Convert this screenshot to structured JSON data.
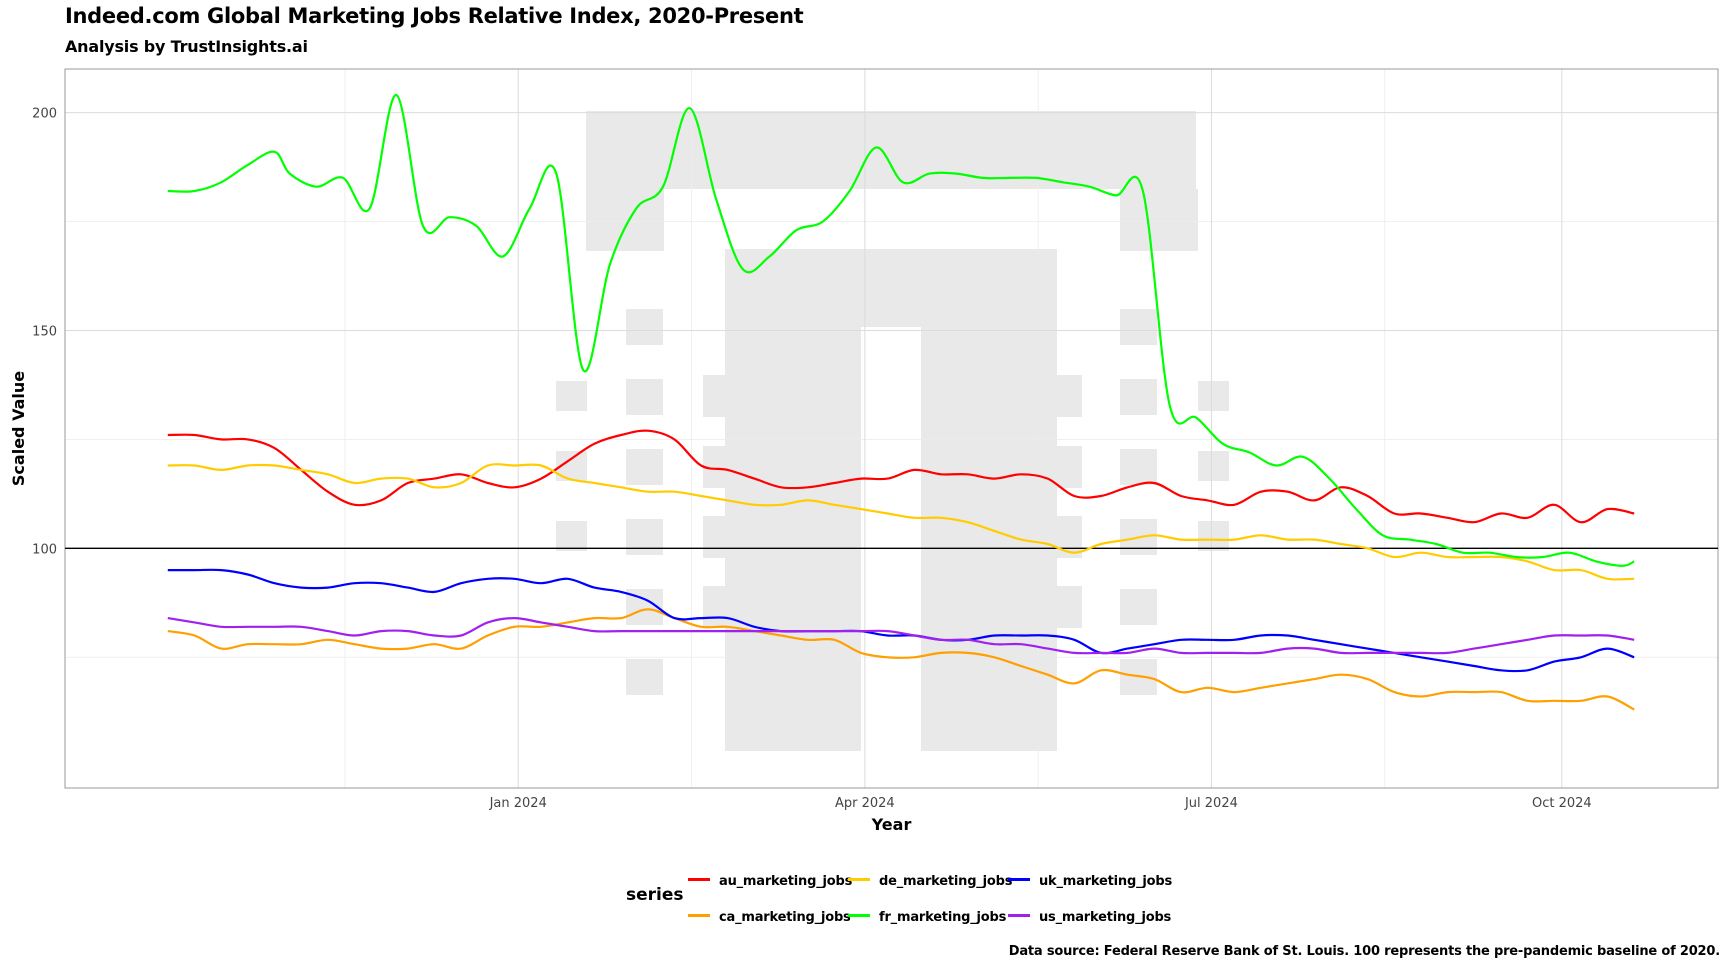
{
  "header": {
    "title": "Indeed.com Global Marketing Jobs Relative Index, 2020-Present",
    "subtitle": "Analysis by TrustInsights.ai"
  },
  "caption": "Data source: Federal Reserve Bank of St. Louis. 100 represents the pre-pandemic baseline of 2020.",
  "legend": {
    "title": "series"
  },
  "chart_data": {
    "type": "line",
    "title": "Indeed.com Global Marketing Jobs Relative Index, 2020-Present",
    "subtitle": "Analysis by TrustInsights.ai",
    "xlabel": "Year",
    "ylabel": "Scaled Value",
    "xlim": [
      "2023-09-04",
      "2024-11-11"
    ],
    "ylim": [
      45,
      210
    ],
    "x_ticks": [
      "2024-01-01",
      "2024-04-01",
      "2024-07-01",
      "2024-10-01"
    ],
    "x_tick_labels": [
      "Jan 2024",
      "Apr 2024",
      "Jul 2024",
      "Oct 2024"
    ],
    "y_ticks": [
      100,
      150,
      200
    ],
    "reference_line": 100,
    "grid": true,
    "legend_position": "bottom",
    "series": [
      {
        "name": "au_marketing_jobs",
        "color": "#ff0000",
        "x": [
          "2023-10-01",
          "2023-10-08",
          "2023-10-15",
          "2023-10-22",
          "2023-10-29",
          "2023-11-05",
          "2023-11-12",
          "2023-11-19",
          "2023-11-26",
          "2023-12-03",
          "2023-12-10",
          "2023-12-17",
          "2023-12-24",
          "2023-12-31",
          "2024-01-07",
          "2024-01-14",
          "2024-01-21",
          "2024-01-28",
          "2024-02-04",
          "2024-02-11",
          "2024-02-18",
          "2024-02-25",
          "2024-03-03",
          "2024-03-10",
          "2024-03-17",
          "2024-03-24",
          "2024-03-31",
          "2024-04-07",
          "2024-04-14",
          "2024-04-21",
          "2024-04-28",
          "2024-05-05",
          "2024-05-12",
          "2024-05-19",
          "2024-05-26",
          "2024-06-02",
          "2024-06-09",
          "2024-06-16",
          "2024-06-23",
          "2024-06-30",
          "2024-07-07",
          "2024-07-14",
          "2024-07-21",
          "2024-07-28",
          "2024-08-04",
          "2024-08-11",
          "2024-08-18",
          "2024-08-25",
          "2024-09-01",
          "2024-09-08",
          "2024-09-15",
          "2024-09-22",
          "2024-09-29",
          "2024-10-06",
          "2024-10-13",
          "2024-10-20"
        ],
        "values": [
          126,
          126,
          125,
          125,
          123,
          118,
          113,
          110,
          111,
          115,
          116,
          117,
          115,
          114,
          116,
          120,
          124,
          126,
          127,
          125,
          119,
          118,
          116,
          114,
          114,
          115,
          116,
          116,
          118,
          117,
          117,
          116,
          117,
          116,
          112,
          112,
          114,
          115,
          112,
          111,
          110,
          113,
          113,
          111,
          114,
          112,
          108,
          108,
          107,
          106,
          108,
          107,
          110,
          106,
          109,
          108
        ]
      },
      {
        "name": "ca_marketing_jobs",
        "color": "#ff9f00",
        "x": [
          "2023-10-01",
          "2023-10-08",
          "2023-10-15",
          "2023-10-22",
          "2023-10-29",
          "2023-11-05",
          "2023-11-12",
          "2023-11-19",
          "2023-11-26",
          "2023-12-03",
          "2023-12-10",
          "2023-12-17",
          "2023-12-24",
          "2023-12-31",
          "2024-01-07",
          "2024-01-14",
          "2024-01-21",
          "2024-01-28",
          "2024-02-04",
          "2024-02-11",
          "2024-02-18",
          "2024-02-25",
          "2024-03-03",
          "2024-03-10",
          "2024-03-17",
          "2024-03-24",
          "2024-03-31",
          "2024-04-07",
          "2024-04-14",
          "2024-04-21",
          "2024-04-28",
          "2024-05-05",
          "2024-05-12",
          "2024-05-19",
          "2024-05-26",
          "2024-06-02",
          "2024-06-09",
          "2024-06-16",
          "2024-06-23",
          "2024-06-30",
          "2024-07-07",
          "2024-07-14",
          "2024-07-21",
          "2024-07-28",
          "2024-08-04",
          "2024-08-11",
          "2024-08-18",
          "2024-08-25",
          "2024-09-01",
          "2024-09-08",
          "2024-09-15",
          "2024-09-22",
          "2024-09-29",
          "2024-10-06",
          "2024-10-13",
          "2024-10-20"
        ],
        "values": [
          81,
          80,
          77,
          78,
          78,
          78,
          79,
          78,
          77,
          77,
          78,
          77,
          80,
          82,
          82,
          83,
          84,
          84,
          86,
          84,
          82,
          82,
          81,
          80,
          79,
          79,
          76,
          75,
          75,
          76,
          76,
          75,
          73,
          71,
          69,
          72,
          71,
          70,
          67,
          68,
          67,
          68,
          69,
          70,
          71,
          70,
          67,
          66,
          67,
          67,
          67,
          65,
          65,
          65,
          66,
          63
        ]
      },
      {
        "name": "de_marketing_jobs",
        "color": "#ffcc00",
        "x": [
          "2023-10-01",
          "2023-10-08",
          "2023-10-15",
          "2023-10-22",
          "2023-10-29",
          "2023-11-05",
          "2023-11-12",
          "2023-11-19",
          "2023-11-26",
          "2023-12-03",
          "2023-12-10",
          "2023-12-17",
          "2023-12-24",
          "2023-12-31",
          "2024-01-07",
          "2024-01-14",
          "2024-01-21",
          "2024-01-28",
          "2024-02-04",
          "2024-02-11",
          "2024-02-18",
          "2024-02-25",
          "2024-03-03",
          "2024-03-10",
          "2024-03-17",
          "2024-03-24",
          "2024-03-31",
          "2024-04-07",
          "2024-04-14",
          "2024-04-21",
          "2024-04-28",
          "2024-05-05",
          "2024-05-12",
          "2024-05-19",
          "2024-05-26",
          "2024-06-02",
          "2024-06-09",
          "2024-06-16",
          "2024-06-23",
          "2024-06-30",
          "2024-07-07",
          "2024-07-14",
          "2024-07-21",
          "2024-07-28",
          "2024-08-04",
          "2024-08-11",
          "2024-08-18",
          "2024-08-25",
          "2024-09-01",
          "2024-09-08",
          "2024-09-15",
          "2024-09-22",
          "2024-09-29",
          "2024-10-06",
          "2024-10-13",
          "2024-10-20"
        ],
        "values": [
          119,
          119,
          118,
          119,
          119,
          118,
          117,
          115,
          116,
          116,
          114,
          115,
          119,
          119,
          119,
          116,
          115,
          114,
          113,
          113,
          112,
          111,
          110,
          110,
          111,
          110,
          109,
          108,
          107,
          107,
          106,
          104,
          102,
          101,
          99,
          101,
          102,
          103,
          102,
          102,
          102,
          103,
          102,
          102,
          101,
          100,
          98,
          99,
          98,
          98,
          98,
          97,
          95,
          95,
          93,
          93
        ]
      },
      {
        "name": "fr_marketing_jobs",
        "color": "#00ff00",
        "x": [
          "2023-10-01",
          "2023-10-08",
          "2023-10-15",
          "2023-10-22",
          "2023-10-29",
          "2023-11-02",
          "2023-11-09",
          "2023-11-16",
          "2023-11-23",
          "2023-11-30",
          "2023-12-07",
          "2023-12-14",
          "2023-12-21",
          "2023-12-28",
          "2024-01-04",
          "2024-01-11",
          "2024-01-18",
          "2024-01-25",
          "2024-02-01",
          "2024-02-08",
          "2024-02-15",
          "2024-02-22",
          "2024-02-29",
          "2024-03-07",
          "2024-03-14",
          "2024-03-21",
          "2024-03-28",
          "2024-04-04",
          "2024-04-11",
          "2024-04-18",
          "2024-04-25",
          "2024-05-02",
          "2024-05-09",
          "2024-05-16",
          "2024-05-23",
          "2024-05-30",
          "2024-06-06",
          "2024-06-13",
          "2024-06-20",
          "2024-06-27",
          "2024-07-04",
          "2024-07-11",
          "2024-07-18",
          "2024-07-25",
          "2024-08-01",
          "2024-08-08",
          "2024-08-15",
          "2024-08-22",
          "2024-08-29",
          "2024-09-05",
          "2024-09-12",
          "2024-09-19",
          "2024-09-26",
          "2024-10-03",
          "2024-10-10",
          "2024-10-17",
          "2024-10-20"
        ],
        "values": [
          182,
          182,
          184,
          188,
          191,
          186,
          183,
          185,
          178,
          204,
          174,
          176,
          174,
          167,
          178,
          186,
          141,
          165,
          178,
          183,
          201,
          180,
          164,
          167,
          173,
          175,
          182,
          192,
          184,
          186,
          186,
          185,
          185,
          185,
          184,
          183,
          181,
          182,
          133,
          130,
          124,
          122,
          119,
          121,
          116,
          109,
          103,
          102,
          101,
          99,
          99,
          98,
          98,
          99,
          97,
          96,
          97
        ]
      },
      {
        "name": "uk_marketing_jobs",
        "color": "#0000ff",
        "x": [
          "2023-10-01",
          "2023-10-08",
          "2023-10-15",
          "2023-10-22",
          "2023-10-29",
          "2023-11-05",
          "2023-11-12",
          "2023-11-19",
          "2023-11-26",
          "2023-12-03",
          "2023-12-10",
          "2023-12-17",
          "2023-12-24",
          "2023-12-31",
          "2024-01-07",
          "2024-01-14",
          "2024-01-21",
          "2024-01-28",
          "2024-02-04",
          "2024-02-11",
          "2024-02-18",
          "2024-02-25",
          "2024-03-03",
          "2024-03-10",
          "2024-03-17",
          "2024-03-24",
          "2024-03-31",
          "2024-04-07",
          "2024-04-14",
          "2024-04-21",
          "2024-04-28",
          "2024-05-05",
          "2024-05-12",
          "2024-05-19",
          "2024-05-26",
          "2024-06-02",
          "2024-06-09",
          "2024-06-16",
          "2024-06-23",
          "2024-06-30",
          "2024-07-07",
          "2024-07-14",
          "2024-07-21",
          "2024-07-28",
          "2024-08-04",
          "2024-08-11",
          "2024-08-18",
          "2024-08-25",
          "2024-09-01",
          "2024-09-08",
          "2024-09-15",
          "2024-09-22",
          "2024-09-29",
          "2024-10-06",
          "2024-10-13",
          "2024-10-20"
        ],
        "values": [
          95,
          95,
          95,
          94,
          92,
          91,
          91,
          92,
          92,
          91,
          90,
          92,
          93,
          93,
          92,
          93,
          91,
          90,
          88,
          84,
          84,
          84,
          82,
          81,
          81,
          81,
          81,
          80,
          80,
          79,
          79,
          80,
          80,
          80,
          79,
          76,
          77,
          78,
          79,
          79,
          79,
          80,
          80,
          79,
          78,
          77,
          76,
          75,
          74,
          73,
          72,
          72,
          74,
          75,
          77,
          75
        ]
      },
      {
        "name": "us_marketing_jobs",
        "color": "#a020f0",
        "x": [
          "2023-10-01",
          "2023-10-08",
          "2023-10-15",
          "2023-10-22",
          "2023-10-29",
          "2023-11-05",
          "2023-11-12",
          "2023-11-19",
          "2023-11-26",
          "2023-12-03",
          "2023-12-10",
          "2023-12-17",
          "2023-12-24",
          "2023-12-31",
          "2024-01-07",
          "2024-01-14",
          "2024-01-21",
          "2024-01-28",
          "2024-02-04",
          "2024-02-11",
          "2024-02-18",
          "2024-02-25",
          "2024-03-03",
          "2024-03-10",
          "2024-03-17",
          "2024-03-24",
          "2024-03-31",
          "2024-04-07",
          "2024-04-14",
          "2024-04-21",
          "2024-04-28",
          "2024-05-05",
          "2024-05-12",
          "2024-05-19",
          "2024-05-26",
          "2024-06-02",
          "2024-06-09",
          "2024-06-16",
          "2024-06-23",
          "2024-06-30",
          "2024-07-07",
          "2024-07-14",
          "2024-07-21",
          "2024-07-28",
          "2024-08-04",
          "2024-08-11",
          "2024-08-18",
          "2024-08-25",
          "2024-09-01",
          "2024-09-08",
          "2024-09-15",
          "2024-09-22",
          "2024-09-29",
          "2024-10-06",
          "2024-10-13",
          "2024-10-20"
        ],
        "values": [
          84,
          83,
          82,
          82,
          82,
          82,
          81,
          80,
          81,
          81,
          80,
          80,
          83,
          84,
          83,
          82,
          81,
          81,
          81,
          81,
          81,
          81,
          81,
          81,
          81,
          81,
          81,
          81,
          80,
          79,
          79,
          78,
          78,
          77,
          76,
          76,
          76,
          77,
          76,
          76,
          76,
          76,
          77,
          77,
          76,
          76,
          76,
          76,
          76,
          77,
          78,
          79,
          80,
          80,
          80,
          79
        ]
      }
    ]
  }
}
